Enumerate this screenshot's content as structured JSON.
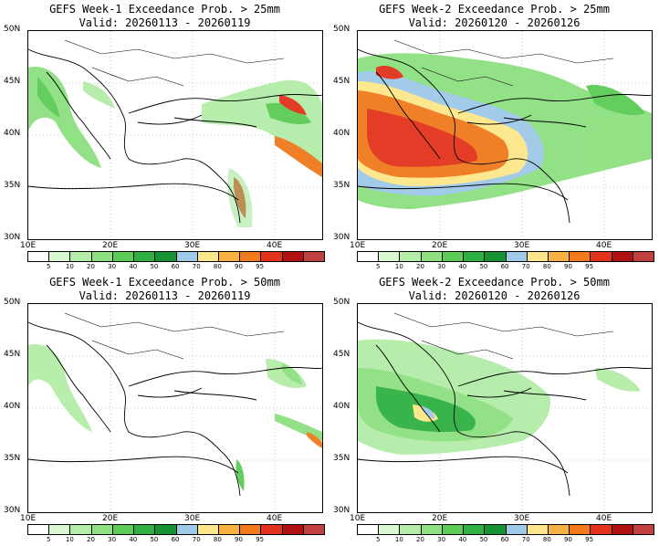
{
  "panels": [
    {
      "title": "GEFS Week-1 Exceedance Prob. > 25mm",
      "valid": "Valid: 20260113 - 20260119"
    },
    {
      "title": "GEFS Week-2 Exceedance Prob. > 25mm",
      "valid": "Valid: 20260120 - 20260126"
    },
    {
      "title": "GEFS Week-1 Exceedance Prob. > 50mm",
      "valid": "Valid: 20260113 - 20260119"
    },
    {
      "title": "GEFS Week-2 Exceedance Prob. > 50mm",
      "valid": "Valid: 20260120 - 20260126"
    }
  ],
  "axes": {
    "lat_labels": [
      "50N",
      "45N",
      "40N",
      "35N",
      "30N"
    ],
    "lon_labels": [
      "10E",
      "20E",
      "30E",
      "40E"
    ]
  },
  "colorbar": {
    "labels": [
      "5",
      "10",
      "20",
      "30",
      "40",
      "50",
      "60",
      "70",
      "80",
      "90",
      "95"
    ],
    "colors": [
      "#ffffff",
      "#d9f7d0",
      "#b4eda8",
      "#8ee080",
      "#5bcc55",
      "#2fb042",
      "#169433",
      "#9ec9e8",
      "#fde68a",
      "#f7b243",
      "#f07a1c",
      "#e2331c",
      "#b01212",
      "#c04040"
    ]
  }
}
